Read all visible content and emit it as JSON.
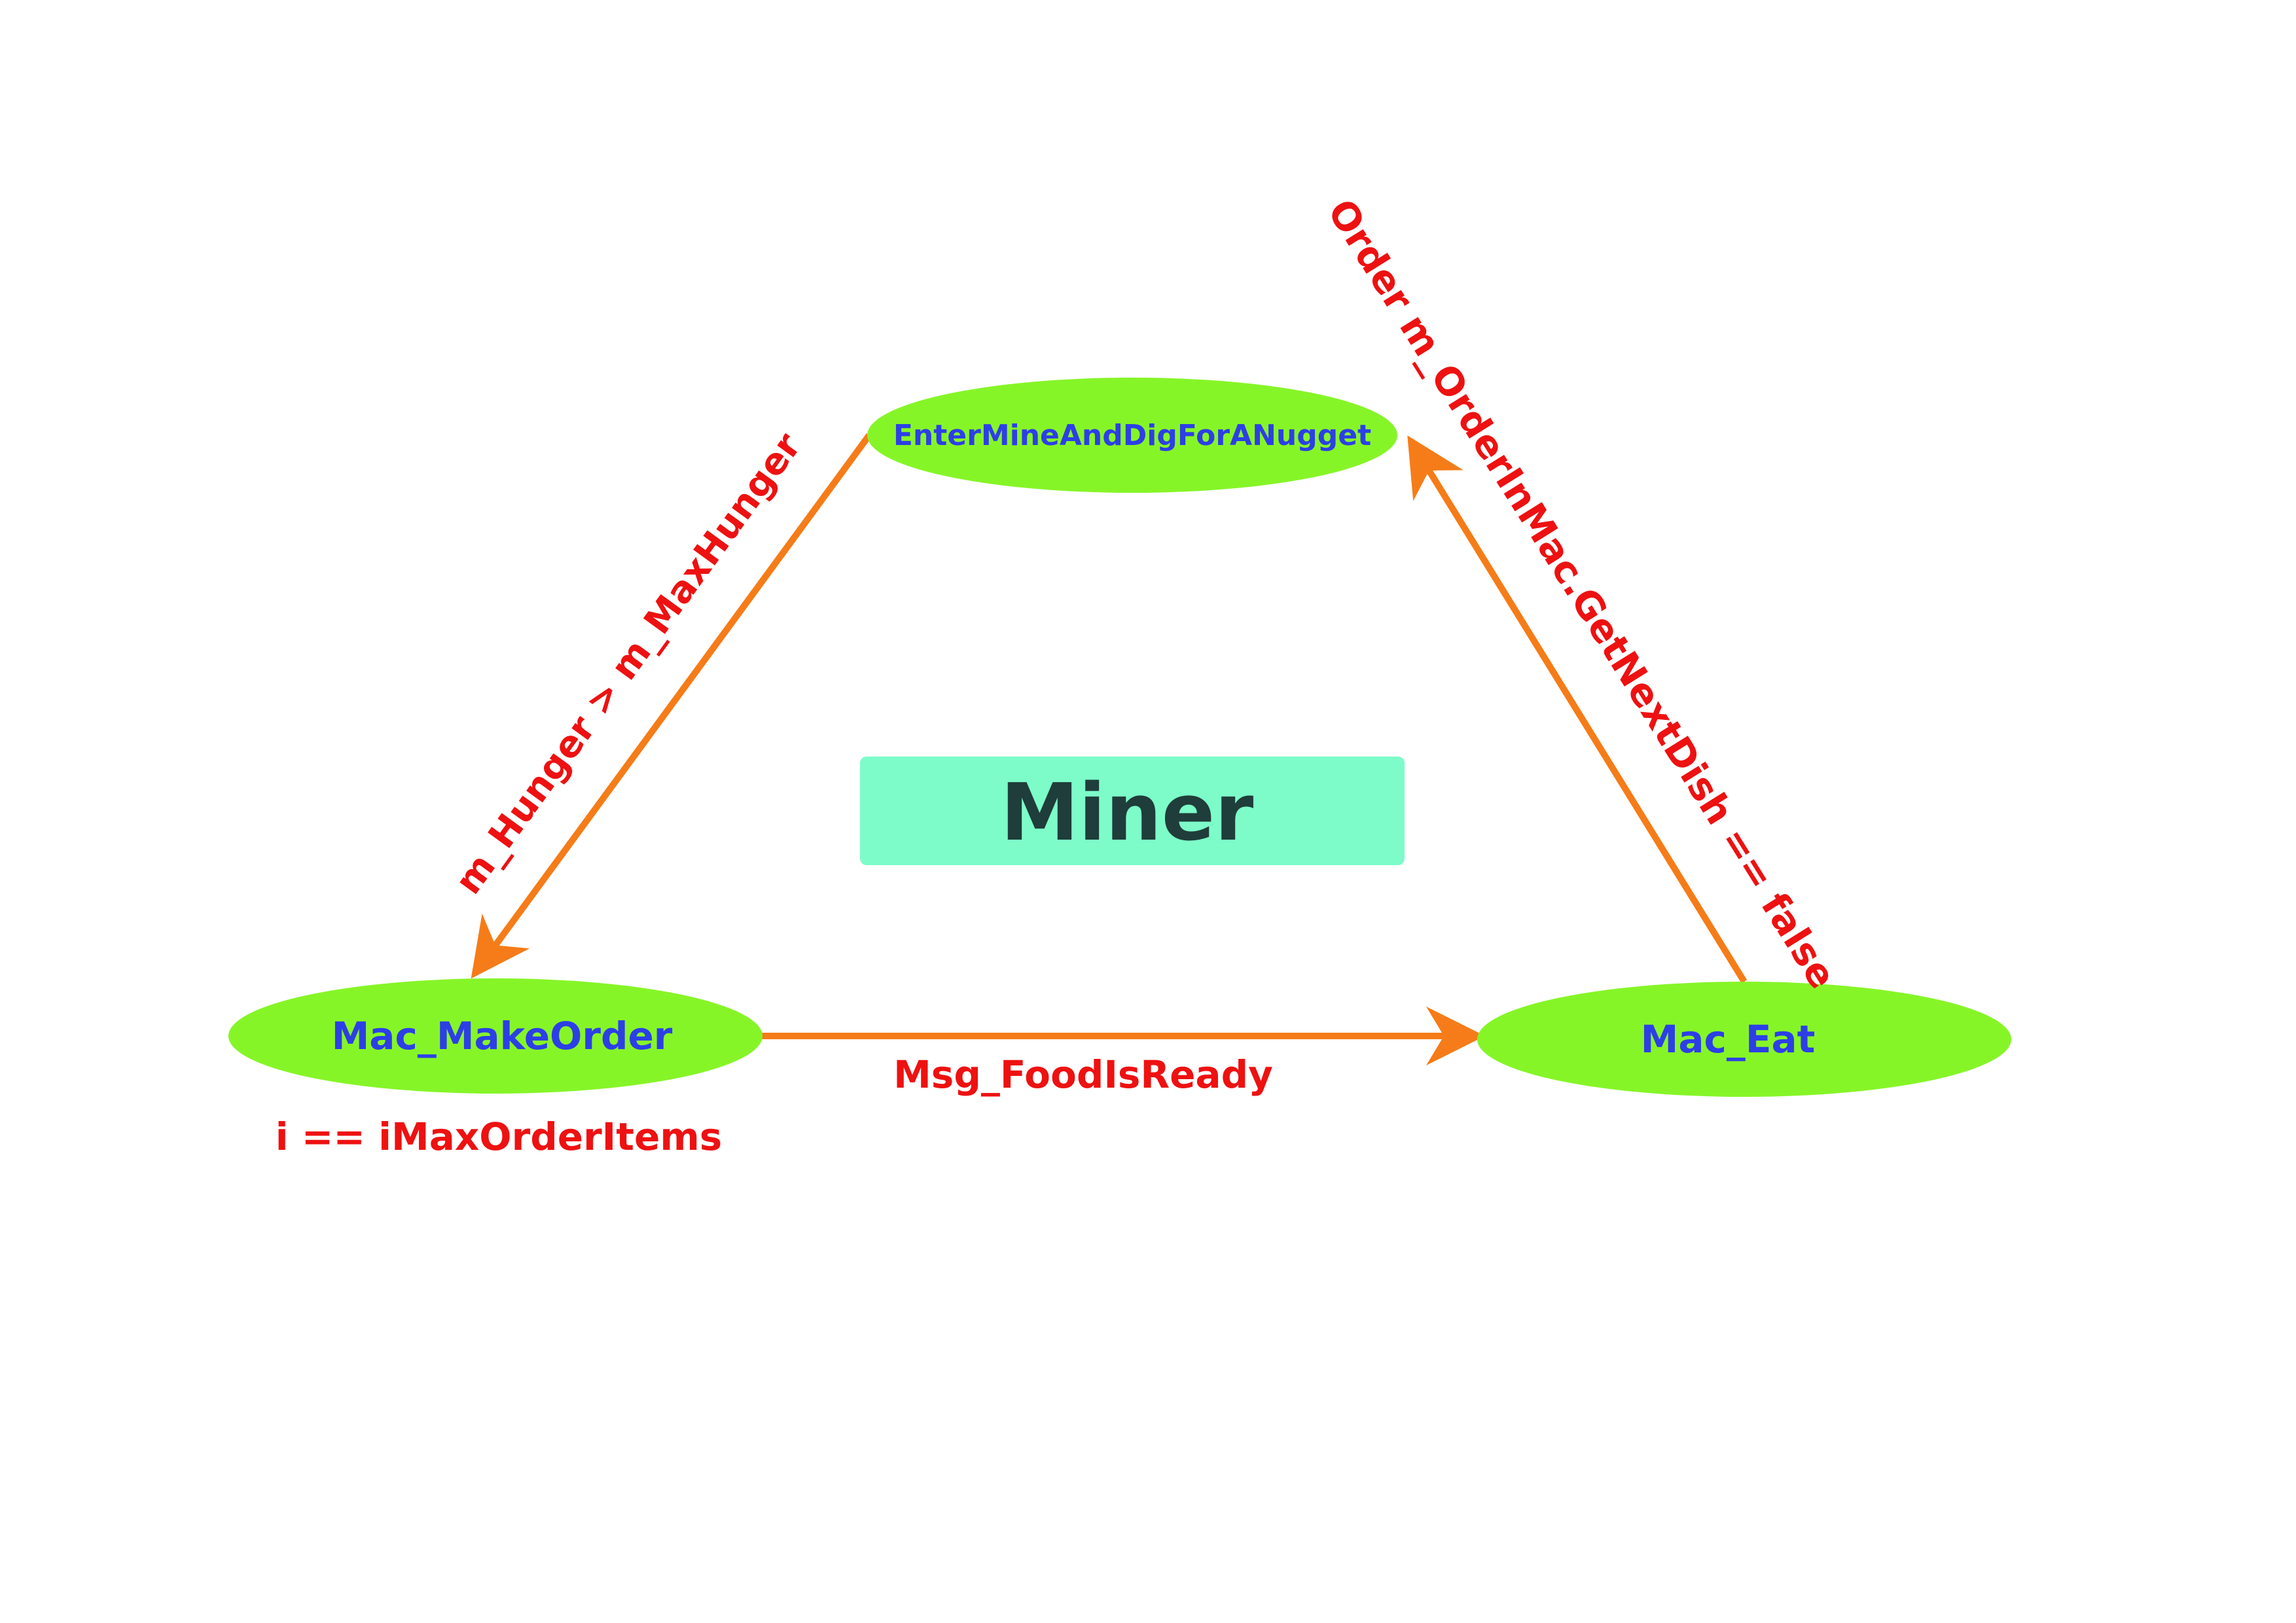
{
  "colors": {
    "state_fill": "#86f528",
    "state_text": "#2c3fe6",
    "arrow": "#f57c18",
    "condition_text": "#ee1111",
    "title_box": "#7dfcc9",
    "title_text": "#1f3d3a",
    "background": "#ffffff"
  },
  "title": "Miner",
  "states": {
    "dig": "EnterMineAndDigForANugget",
    "make_order": "Mac_MakeOrder",
    "eat": "Mac_Eat"
  },
  "transitions": {
    "dig_to_make_order": "m_Hunger > m_MaxHunger",
    "make_order_to_eat": "Msg_FoodIsReady",
    "eat_to_dig": "Order m_OrderInMac.GetNextDish == false",
    "make_order_note": "i == iMaxOrderItems"
  }
}
